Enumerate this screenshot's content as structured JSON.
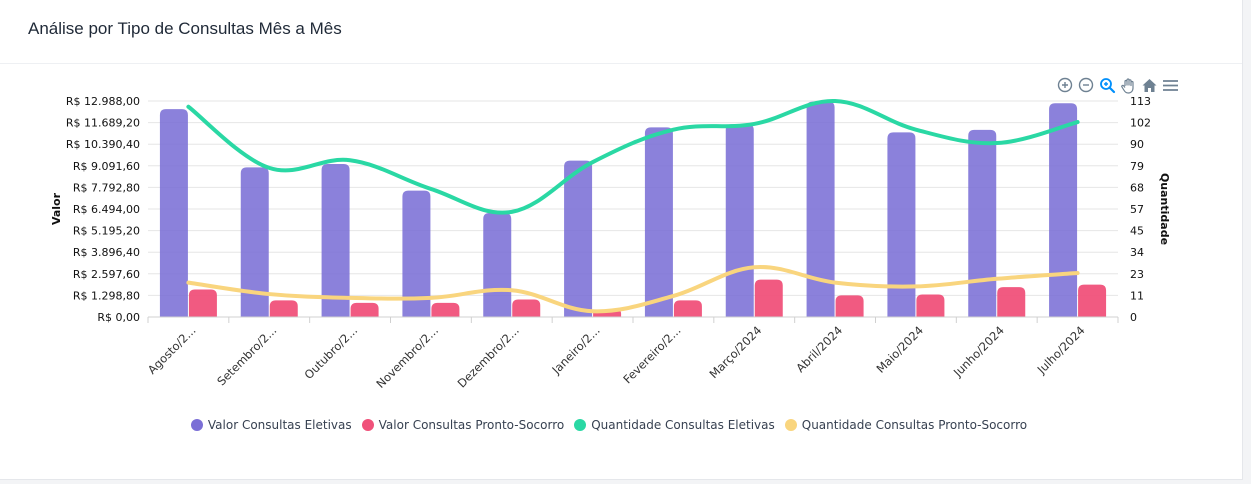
{
  "title": "Análise por Tipo de Consultas Mês a Mês",
  "toolbar": {
    "icons": [
      "zoom-in-icon",
      "zoom-out-icon",
      "selection-zoom-icon",
      "pan-hand-icon",
      "reset-home-icon",
      "menu-icon"
    ]
  },
  "colors": {
    "eletivas_bar": "#7b6fd6",
    "ps_bar": "#f0517a",
    "eletivas_line": "#2ad8a4",
    "ps_line": "#f9d57e"
  },
  "chart_data": {
    "type": "bar",
    "categories": [
      "Agosto/2...",
      "Setembro/2...",
      "Outubro/2...",
      "Novembro/2...",
      "Dezembro/2...",
      "Janeiro/2...",
      "Fevereiro/2...",
      "Março/2024",
      "Abril/2024",
      "Maio/2024",
      "Junho/2024",
      "Julho/2024"
    ],
    "series": [
      {
        "name": "Valor Consultas Eletivas",
        "type": "bar",
        "axis": "left",
        "values": [
          12500,
          9000,
          9200,
          7600,
          6250,
          9400,
          11400,
          11600,
          12950,
          11100,
          11250,
          12850
        ]
      },
      {
        "name": "Valor Consultas Pronto-Socorro",
        "type": "bar",
        "axis": "left",
        "values": [
          1650,
          1000,
          850,
          850,
          1050,
          420,
          1000,
          2250,
          1300,
          1350,
          1800,
          1950
        ]
      },
      {
        "name": "Quantidade Consultas Eletivas",
        "type": "line",
        "axis": "right",
        "values": [
          110,
          78,
          82,
          67,
          55,
          81,
          98,
          101,
          113,
          98,
          91,
          102
        ]
      },
      {
        "name": "Quantidade Consultas Pronto-Socorro",
        "type": "line",
        "axis": "right",
        "values": [
          18,
          12,
          10,
          10,
          14,
          3,
          11,
          26,
          18,
          16,
          20,
          23
        ]
      }
    ],
    "ylabel": "Valor",
    "y2label": "Quantidade",
    "ylim": [
      0,
      12988
    ],
    "y2lim": [
      0,
      113
    ],
    "yticks": [
      "R$ 0,00",
      "R$ 1.298,80",
      "R$ 2.597,60",
      "R$ 3.896,40",
      "R$ 5.195,20",
      "R$ 6.494,00",
      "R$ 7.792,80",
      "R$ 9.091,60",
      "R$ 10.390,40",
      "R$ 11.689,20",
      "R$ 12.988,00"
    ],
    "y2ticks": [
      "0",
      "11",
      "23",
      "34",
      "45",
      "57",
      "68",
      "79",
      "90",
      "102",
      "113"
    ],
    "grid": true,
    "legend": "bottom"
  }
}
